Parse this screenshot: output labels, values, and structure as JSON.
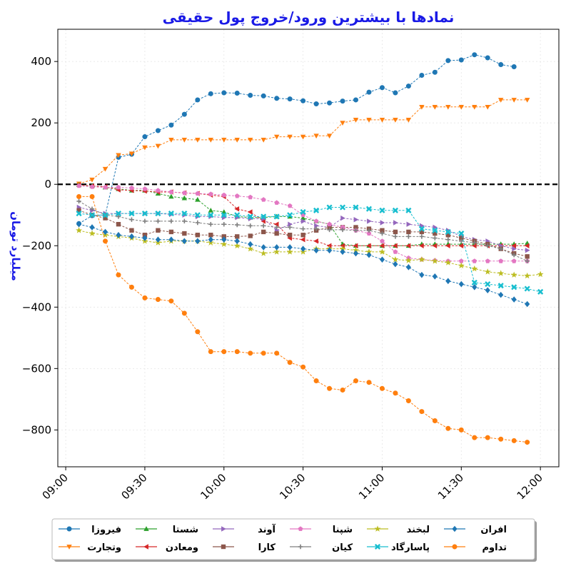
{
  "chart_data": {
    "type": "line",
    "title": "نمادها با بیشترین ورود/خروج پول حقیقی",
    "ylabel": "میلیارد تومان",
    "xlabel": "",
    "x_ticks": [
      "09:00",
      "09:30",
      "10:00",
      "10:30",
      "11:00",
      "11:30",
      "12:00"
    ],
    "y_ticks": [
      400,
      200,
      0,
      -200,
      -400,
      -600,
      -800
    ],
    "y_tick_labels": [
      "400",
      "200",
      "0",
      "−200",
      "−400",
      "−600",
      "−800"
    ],
    "xlim": [
      "08:57",
      "12:07"
    ],
    "ylim": [
      -920,
      505
    ],
    "zero_line": true,
    "grid": true,
    "legend_position": "bottom-center",
    "x": [
      "09:05",
      "09:10",
      "09:15",
      "09:20",
      "09:25",
      "09:30",
      "09:35",
      "09:40",
      "09:45",
      "09:50",
      "09:55",
      "10:00",
      "10:05",
      "10:10",
      "10:15",
      "10:20",
      "10:25",
      "10:30",
      "10:35",
      "10:40",
      "10:45",
      "10:50",
      "10:55",
      "11:00",
      "11:05",
      "11:10",
      "11:15",
      "11:20",
      "11:25",
      "11:30",
      "11:35",
      "11:40",
      "11:45",
      "11:50",
      "11:55",
      "12:00"
    ],
    "series": [
      {
        "name": "فیروزا",
        "color": "#1f77b4",
        "marker": "circle",
        "values": [
          -128,
          -102,
          -100,
          88,
          98,
          155,
          175,
          193,
          228,
          275,
          295,
          298,
          297,
          290,
          288,
          280,
          278,
          272,
          262,
          265,
          271,
          275,
          300,
          315,
          298,
          320,
          355,
          365,
          403,
          405,
          422,
          412,
          390,
          383,
          null,
          null
        ]
      },
      {
        "name": "وتجارت",
        "color": "#ff7f0e",
        "marker": "triangle-down",
        "values": [
          2,
          15,
          50,
          95,
          100,
          120,
          125,
          145,
          145,
          145,
          145,
          145,
          145,
          145,
          145,
          155,
          155,
          155,
          158,
          158,
          200,
          210,
          210,
          210,
          210,
          210,
          252,
          252,
          252,
          252,
          252,
          252,
          275,
          275,
          275,
          null
        ]
      },
      {
        "name": "شستا",
        "color": "#2ca02c",
        "marker": "triangle-up",
        "values": [
          -2,
          -5,
          -10,
          -15,
          -20,
          -20,
          -30,
          -40,
          -45,
          -50,
          -85,
          -90,
          -105,
          -108,
          -108,
          -105,
          -105,
          -110,
          -120,
          -130,
          -195,
          -200,
          -200,
          -200,
          -200,
          -200,
          -195,
          -195,
          -195,
          -195,
          -195,
          -195,
          -195,
          -195,
          -192,
          null
        ]
      },
      {
        "name": "ومعادن",
        "color": "#d62728",
        "marker": "triangle-left",
        "values": [
          -2,
          -5,
          -8,
          -18,
          -20,
          -22,
          -25,
          -25,
          -28,
          -30,
          -35,
          -40,
          -80,
          -90,
          -120,
          -130,
          -175,
          -180,
          -185,
          -200,
          -200,
          -200,
          -200,
          -200,
          -200,
          -200,
          -200,
          -200,
          -200,
          -200,
          -200,
          -200,
          -200,
          -200,
          -200,
          null
        ]
      },
      {
        "name": "آوند",
        "color": "#9467bd",
        "marker": "triangle-right",
        "values": [
          -75,
          -85,
          -95,
          -95,
          -95,
          -95,
          -95,
          -98,
          -100,
          -105,
          -105,
          -108,
          -108,
          -112,
          -112,
          -150,
          -130,
          -120,
          -135,
          -140,
          -110,
          -115,
          -120,
          -125,
          -125,
          -130,
          -135,
          -140,
          -150,
          -170,
          -180,
          -185,
          -200,
          -210,
          -215,
          null
        ]
      },
      {
        "name": "کارا",
        "color": "#8c564b",
        "marker": "square",
        "values": [
          -85,
          -100,
          -110,
          -130,
          -150,
          -165,
          -150,
          -155,
          -160,
          -165,
          -165,
          -170,
          -170,
          -168,
          -155,
          -160,
          -165,
          -165,
          -150,
          -140,
          -140,
          -140,
          -145,
          -150,
          -155,
          -155,
          -155,
          -160,
          -165,
          -175,
          -185,
          -195,
          -210,
          -225,
          -235,
          null
        ]
      },
      {
        "name": "شپنا",
        "color": "#e377c2",
        "marker": "pentagon",
        "values": [
          -5,
          -8,
          -10,
          -10,
          -12,
          -15,
          -20,
          -25,
          -28,
          -30,
          -32,
          -35,
          -38,
          -42,
          -50,
          -60,
          -70,
          -100,
          -120,
          -130,
          -140,
          -150,
          -160,
          -185,
          -220,
          -240,
          -245,
          -248,
          -250,
          -250,
          -250,
          -250,
          -250,
          -250,
          -250,
          null
        ]
      },
      {
        "name": "کیان",
        "color": "#7f7f7f",
        "marker": "plus",
        "values": [
          -55,
          -80,
          -100,
          -105,
          -115,
          -120,
          -120,
          -120,
          -120,
          -125,
          -130,
          -130,
          -132,
          -135,
          -135,
          -140,
          -140,
          -145,
          -145,
          -148,
          -148,
          -150,
          -150,
          -160,
          -170,
          -170,
          -170,
          -175,
          -180,
          -185,
          -190,
          -200,
          -210,
          -230,
          -250,
          null
        ]
      },
      {
        "name": "لبخند",
        "color": "#bcbd22",
        "marker": "star",
        "values": [
          -150,
          -160,
          -165,
          -170,
          -175,
          -185,
          -190,
          -185,
          -185,
          -185,
          -190,
          -195,
          -200,
          -210,
          -225,
          -220,
          -220,
          -220,
          -210,
          -210,
          -210,
          -215,
          -220,
          -220,
          -245,
          -248,
          -245,
          -250,
          -255,
          -265,
          -275,
          -285,
          -290,
          -295,
          -298,
          -293
        ]
      },
      {
        "name": "پاسارگاد",
        "color": "#17becf",
        "marker": "x-filled",
        "values": [
          -95,
          -100,
          -100,
          -95,
          -95,
          -95,
          -95,
          -95,
          -95,
          -100,
          -100,
          -100,
          -100,
          -105,
          -105,
          -105,
          -100,
          -90,
          -85,
          -75,
          -75,
          -75,
          -80,
          -85,
          -85,
          -85,
          -145,
          -150,
          -155,
          -160,
          -320,
          -325,
          -330,
          -335,
          -340,
          -350
        ]
      },
      {
        "name": "افران",
        "color": "#1f77b4",
        "marker": "diamond",
        "values": [
          -130,
          -140,
          -155,
          -165,
          -170,
          -175,
          -180,
          -180,
          -185,
          -185,
          -180,
          -180,
          -185,
          -195,
          -205,
          -205,
          -205,
          -210,
          -215,
          -215,
          -220,
          -225,
          -230,
          -245,
          -260,
          -270,
          -295,
          -300,
          -315,
          -325,
          -335,
          -345,
          -360,
          -375,
          -390,
          null
        ]
      },
      {
        "name": "تداوم",
        "color": "#ff7f0e",
        "marker": "circle",
        "values": [
          -40,
          -40,
          -185,
          -295,
          -335,
          -370,
          -375,
          -380,
          -420,
          -480,
          -545,
          -545,
          -545,
          -550,
          -550,
          -550,
          -580,
          -595,
          -640,
          -665,
          -670,
          -640,
          -645,
          -665,
          -680,
          -705,
          -740,
          -770,
          -795,
          -800,
          -825,
          -825,
          -830,
          -835,
          -840,
          null
        ]
      }
    ]
  }
}
